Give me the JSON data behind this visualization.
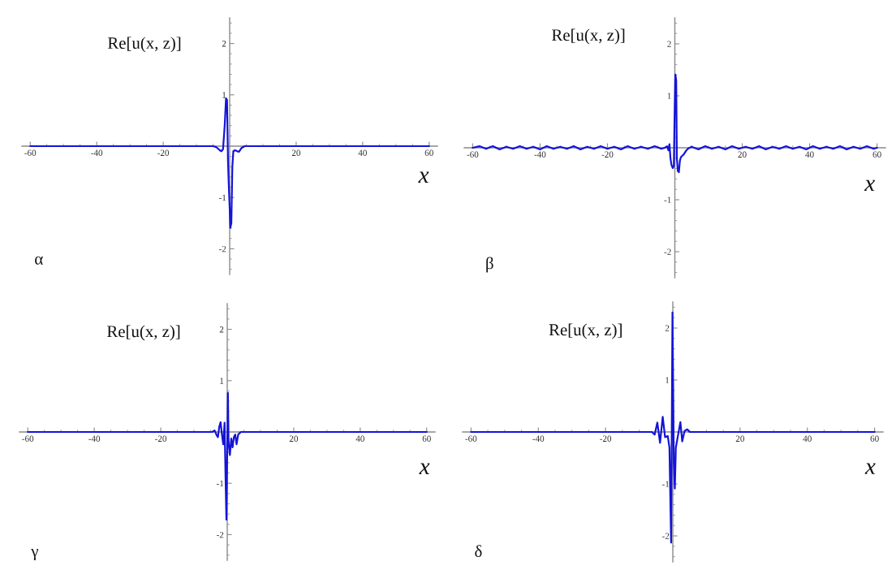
{
  "chart_data": [
    {
      "type": "line",
      "xlabel": "x",
      "ylabel": "Re[u(x, z)]",
      "annotations": [
        "α"
      ],
      "xlim": [
        -62.5,
        62.5
      ],
      "ylim": [
        -2.5,
        2.5
      ],
      "xticks": [
        -60,
        {
          "value": -55,
          "label": null
        },
        {
          "value": -50,
          "label": null
        },
        {
          "value": -45,
          "label": null
        },
        -40,
        {
          "value": -35,
          "label": null
        },
        {
          "value": -30,
          "label": null
        },
        {
          "value": -25,
          "label": null
        },
        -20,
        {
          "value": -15,
          "label": null
        },
        {
          "value": -10,
          "label": null
        },
        {
          "value": -5,
          "label": null
        },
        {
          "value": 5,
          "label": null
        },
        {
          "value": 10,
          "label": null
        },
        {
          "value": 15,
          "label": null
        },
        20,
        {
          "value": 25,
          "label": null
        },
        {
          "value": 30,
          "label": null
        },
        {
          "value": 35,
          "label": null
        },
        40,
        {
          "value": 45,
          "label": null
        },
        {
          "value": 50,
          "label": null
        },
        {
          "value": 55,
          "label": null
        },
        60
      ],
      "yticks": [
        {
          "value": -2.4,
          "label": null
        },
        {
          "value": -2.2,
          "label": null
        },
        -2,
        {
          "value": -1.8,
          "label": null
        },
        {
          "value": -1.6,
          "label": null
        },
        {
          "value": -1.4,
          "label": null
        },
        {
          "value": -1.2,
          "label": null
        },
        -1,
        {
          "value": -0.8,
          "label": null
        },
        {
          "value": -0.6,
          "label": null
        },
        {
          "value": -0.4,
          "label": null
        },
        {
          "value": -0.2,
          "label": null
        },
        {
          "value": 0.2,
          "label": null
        },
        {
          "value": 0.4,
          "label": null
        },
        {
          "value": 0.6,
          "label": null
        },
        {
          "value": 0.8,
          "label": null
        },
        1,
        {
          "value": 1.2,
          "label": null
        },
        {
          "value": 1.4,
          "label": null
        },
        {
          "value": 1.6,
          "label": null
        },
        {
          "value": 1.8,
          "label": null
        },
        2,
        {
          "value": 2.2,
          "label": null
        },
        {
          "value": 2.4,
          "label": null
        }
      ],
      "series": [
        {
          "color": "#1414d8",
          "x": [
            -60,
            -5,
            -4,
            -3,
            -2.5,
            -2,
            -1.5,
            -1.1,
            -0.8,
            -0.5,
            -0.3,
            0,
            0.2,
            0.5,
            0.8,
            1.1,
            1.6,
            2.3,
            2.8,
            3.5,
            4.5,
            60
          ],
          "values": [
            0,
            0,
            -0.02,
            -0.08,
            -0.1,
            -0.06,
            0.4,
            0.93,
            0.9,
            -0.3,
            -0.7,
            -1.2,
            -1.59,
            -1.5,
            -0.4,
            -0.1,
            -0.08,
            -0.1,
            -0.11,
            -0.04,
            0,
            0
          ]
        }
      ]
    },
    {
      "type": "line",
      "xlabel": "x",
      "ylabel": "Re[u(x, z)]",
      "annotations": [
        "β"
      ],
      "xlim": [
        -62.5,
        62.5
      ],
      "ylim": [
        -2.5,
        2.5
      ],
      "xticks": [
        -60,
        {
          "value": -55,
          "label": null
        },
        {
          "value": -50,
          "label": null
        },
        {
          "value": -45,
          "label": null
        },
        -40,
        {
          "value": -35,
          "label": null
        },
        {
          "value": -30,
          "label": null
        },
        {
          "value": -25,
          "label": null
        },
        -20,
        {
          "value": -15,
          "label": null
        },
        {
          "value": -10,
          "label": null
        },
        {
          "value": -5,
          "label": null
        },
        {
          "value": 5,
          "label": null
        },
        {
          "value": 10,
          "label": null
        },
        {
          "value": 15,
          "label": null
        },
        20,
        {
          "value": 25,
          "label": null
        },
        {
          "value": 30,
          "label": null
        },
        {
          "value": 35,
          "label": null
        },
        40,
        {
          "value": 45,
          "label": null
        },
        {
          "value": 50,
          "label": null
        },
        {
          "value": 55,
          "label": null
        },
        60
      ],
      "yticks": [
        {
          "value": -2.4,
          "label": null
        },
        {
          "value": -2.2,
          "label": null
        },
        -2,
        {
          "value": -1.8,
          "label": null
        },
        {
          "value": -1.6,
          "label": null
        },
        {
          "value": -1.4,
          "label": null
        },
        {
          "value": -1.2,
          "label": null
        },
        -1,
        {
          "value": -0.8,
          "label": null
        },
        {
          "value": -0.6,
          "label": null
        },
        {
          "value": -0.4,
          "label": null
        },
        {
          "value": -0.2,
          "label": null
        },
        {
          "value": 0.2,
          "label": null
        },
        {
          "value": 0.4,
          "label": null
        },
        {
          "value": 0.6,
          "label": null
        },
        {
          "value": 0.8,
          "label": null
        },
        1,
        {
          "value": 1.2,
          "label": null
        },
        {
          "value": 1.4,
          "label": null
        },
        {
          "value": 1.6,
          "label": null
        },
        {
          "value": 1.8,
          "label": null
        },
        2,
        {
          "value": 2.2,
          "label": null
        },
        {
          "value": 2.4,
          "label": null
        }
      ],
      "series": [
        {
          "color": "#1414d8",
          "x": [
            -60,
            -58,
            -56,
            -54,
            -52,
            -50,
            -48,
            -46,
            -44,
            -42,
            -40,
            -38,
            -36,
            -34,
            -32,
            -30,
            -28,
            -26,
            -24,
            -22,
            -20,
            -18,
            -16,
            -14,
            -12,
            -10,
            -8,
            -6,
            -4,
            -3.0,
            -2.3,
            -1.9,
            -1.6,
            -1.3,
            -1.0,
            -0.6,
            -0.3,
            -0.1,
            0.15,
            0.4,
            0.6,
            0.9,
            1.2,
            1.5,
            1.8,
            2.6,
            3.3,
            4.0,
            5,
            7,
            9,
            11,
            13,
            15,
            17,
            19,
            21,
            23,
            25,
            27,
            29,
            31,
            33,
            35,
            37,
            39,
            41,
            43,
            45,
            47,
            49,
            51,
            53,
            55,
            57,
            59,
            60
          ],
          "values": [
            0,
            0.03,
            -0.02,
            0.03,
            -0.03,
            0.02,
            -0.02,
            0.03,
            -0.02,
            0.02,
            -0.03,
            0.03,
            -0.02,
            0.02,
            -0.02,
            0.03,
            -0.03,
            0.02,
            -0.02,
            0.03,
            -0.02,
            0.02,
            -0.03,
            0.03,
            -0.02,
            0.02,
            -0.02,
            0.03,
            -0.02,
            0,
            0.03,
            -0.05,
            0.07,
            -0.2,
            -0.33,
            -0.39,
            -0.35,
            0.5,
            1.41,
            1.3,
            -0.2,
            -0.45,
            -0.47,
            -0.25,
            -0.18,
            -0.13,
            -0.06,
            -0.01,
            0.02,
            -0.03,
            0.03,
            -0.02,
            0.02,
            -0.03,
            0.03,
            -0.02,
            0.02,
            -0.02,
            0.03,
            -0.03,
            0.02,
            -0.02,
            0.03,
            -0.02,
            0.02,
            -0.03,
            0.03,
            -0.02,
            0.02,
            -0.02,
            0.03,
            -0.03,
            0.02,
            -0.02,
            0.03,
            -0.02,
            0
          ]
        }
      ]
    },
    {
      "type": "line",
      "xlabel": "x",
      "ylabel": "Re[u(x, z)]",
      "annotations": [
        "γ"
      ],
      "xlim": [
        -62.5,
        62.5
      ],
      "ylim": [
        -2.5,
        2.5
      ],
      "xticks": [
        -60,
        {
          "value": -55,
          "label": null
        },
        {
          "value": -50,
          "label": null
        },
        {
          "value": -45,
          "label": null
        },
        -40,
        {
          "value": -35,
          "label": null
        },
        {
          "value": -30,
          "label": null
        },
        {
          "value": -25,
          "label": null
        },
        -20,
        {
          "value": -15,
          "label": null
        },
        {
          "value": -10,
          "label": null
        },
        {
          "value": -5,
          "label": null
        },
        {
          "value": 5,
          "label": null
        },
        {
          "value": 10,
          "label": null
        },
        {
          "value": 15,
          "label": null
        },
        20,
        {
          "value": 25,
          "label": null
        },
        {
          "value": 30,
          "label": null
        },
        {
          "value": 35,
          "label": null
        },
        40,
        {
          "value": 45,
          "label": null
        },
        {
          "value": 50,
          "label": null
        },
        {
          "value": 55,
          "label": null
        },
        60
      ],
      "yticks": [
        {
          "value": -2.4,
          "label": null
        },
        {
          "value": -2.2,
          "label": null
        },
        -2,
        {
          "value": -1.8,
          "label": null
        },
        {
          "value": -1.6,
          "label": null
        },
        {
          "value": -1.4,
          "label": null
        },
        {
          "value": -1.2,
          "label": null
        },
        -1,
        {
          "value": -0.8,
          "label": null
        },
        {
          "value": -0.6,
          "label": null
        },
        {
          "value": -0.4,
          "label": null
        },
        {
          "value": -0.2,
          "label": null
        },
        {
          "value": 0.2,
          "label": null
        },
        {
          "value": 0.4,
          "label": null
        },
        {
          "value": 0.6,
          "label": null
        },
        {
          "value": 0.8,
          "label": null
        },
        1,
        {
          "value": 1.2,
          "label": null
        },
        {
          "value": 1.4,
          "label": null
        },
        {
          "value": 1.6,
          "label": null
        },
        {
          "value": 1.8,
          "label": null
        },
        2,
        {
          "value": 2.2,
          "label": null
        },
        {
          "value": 2.4,
          "label": null
        }
      ],
      "series": [
        {
          "color": "#1414d8",
          "x": [
            -60,
            -4.5,
            -3.8,
            -3.2,
            -2.8,
            -2.4,
            -2.0,
            -1.6,
            -1.2,
            -0.8,
            -0.5,
            -0.25,
            0,
            0.2,
            0.4,
            0.8,
            1.2,
            1.6,
            2.0,
            2.4,
            2.8,
            3.3,
            4.1,
            60
          ],
          "values": [
            0,
            0,
            0.03,
            -0.06,
            -0.1,
            0.1,
            0.19,
            -0.05,
            -0.24,
            0.18,
            -0.9,
            -1.71,
            -0.3,
            0.76,
            -0.2,
            -0.45,
            -0.13,
            -0.3,
            -0.1,
            -0.05,
            -0.24,
            -0.05,
            0,
            0
          ]
        }
      ]
    },
    {
      "type": "line",
      "xlabel": "x",
      "ylabel": "Re[u(x, z)]",
      "annotations": [
        "δ"
      ],
      "xlim": [
        -62.5,
        62.5
      ],
      "ylim": [
        -2.5,
        2.5
      ],
      "xticks": [
        -60,
        {
          "value": -55,
          "label": null
        },
        {
          "value": -50,
          "label": null
        },
        {
          "value": -45,
          "label": null
        },
        -40,
        {
          "value": -35,
          "label": null
        },
        {
          "value": -30,
          "label": null
        },
        {
          "value": -25,
          "label": null
        },
        -20,
        {
          "value": -15,
          "label": null
        },
        {
          "value": -10,
          "label": null
        },
        {
          "value": -5,
          "label": null
        },
        {
          "value": 5,
          "label": null
        },
        {
          "value": 10,
          "label": null
        },
        {
          "value": 15,
          "label": null
        },
        20,
        {
          "value": 25,
          "label": null
        },
        {
          "value": 30,
          "label": null
        },
        {
          "value": 35,
          "label": null
        },
        40,
        {
          "value": 45,
          "label": null
        },
        {
          "value": 50,
          "label": null
        },
        {
          "value": 55,
          "label": null
        },
        60
      ],
      "yticks": [
        {
          "value": -2.4,
          "label": null
        },
        {
          "value": -2.2,
          "label": null
        },
        -2,
        {
          "value": -1.8,
          "label": null
        },
        {
          "value": -1.6,
          "label": null
        },
        {
          "value": -1.4,
          "label": null
        },
        {
          "value": -1.2,
          "label": null
        },
        -1,
        {
          "value": -0.8,
          "label": null
        },
        {
          "value": -0.6,
          "label": null
        },
        {
          "value": -0.4,
          "label": null
        },
        {
          "value": -0.2,
          "label": null
        },
        {
          "value": 0.2,
          "label": null
        },
        {
          "value": 0.4,
          "label": null
        },
        {
          "value": 0.6,
          "label": null
        },
        {
          "value": 0.8,
          "label": null
        },
        1,
        {
          "value": 1.2,
          "label": null
        },
        {
          "value": 1.4,
          "label": null
        },
        {
          "value": 1.6,
          "label": null
        },
        {
          "value": 1.8,
          "label": null
        },
        2,
        {
          "value": 2.2,
          "label": null
        },
        {
          "value": 2.4,
          "label": null
        }
      ],
      "series": [
        {
          "color": "#1414d8",
          "x": [
            -60,
            -6.2,
            -5.4,
            -4.6,
            -3.8,
            -3.0,
            -2.3,
            -1.5,
            -1.0,
            -0.5,
            -0.1,
            0.3,
            0.6,
            0.9,
            1.45,
            2.25,
            2.8,
            3.5,
            4.3,
            5.0,
            60
          ],
          "values": [
            0,
            0,
            -0.05,
            0.18,
            -0.21,
            0.29,
            -0.1,
            -0.08,
            -0.3,
            -2.13,
            2.3,
            -0.6,
            -1.09,
            -0.3,
            -0.1,
            0.19,
            -0.18,
            0.02,
            0.05,
            0,
            0
          ]
        }
      ]
    }
  ]
}
